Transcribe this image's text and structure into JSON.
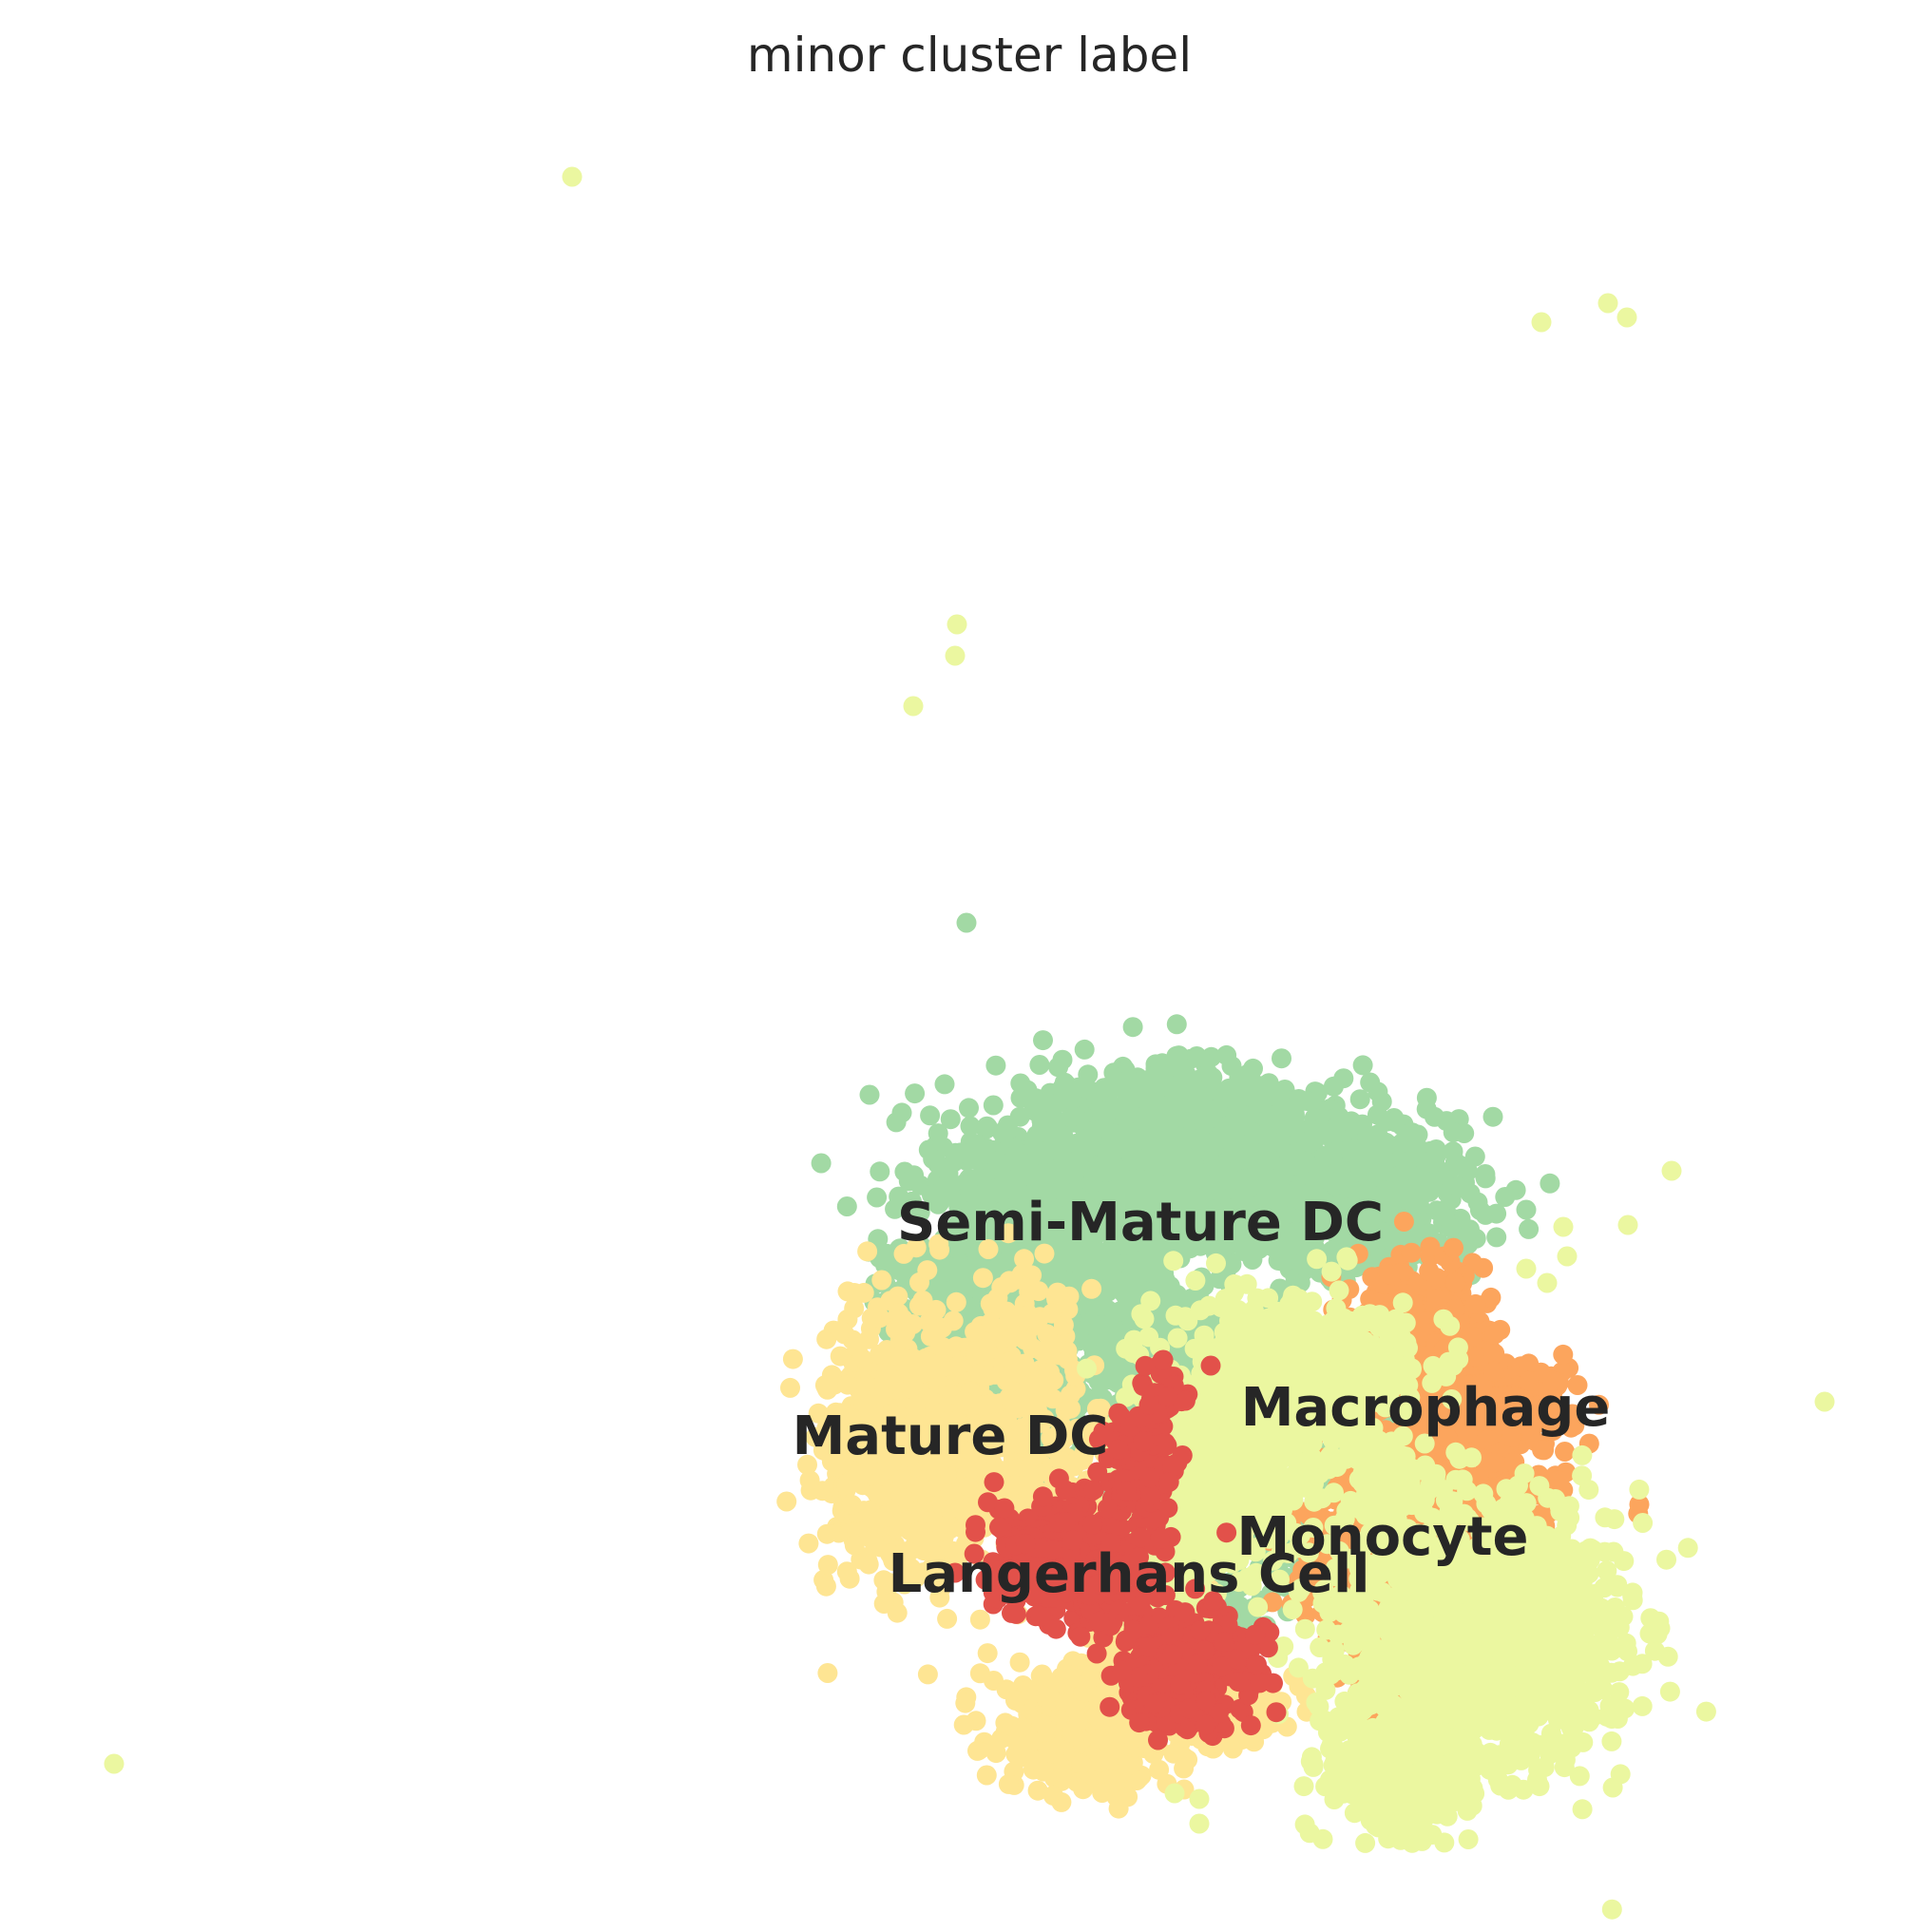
{
  "chart_data": {
    "type": "scatter",
    "title": "minor cluster label",
    "xlabel": "",
    "ylabel": "",
    "grid": false,
    "axes_visible": false,
    "legend": "on-data",
    "series": [
      {
        "name": "Semi-Mature DC",
        "color": "#a2d9a4"
      },
      {
        "name": "Mature DC",
        "color": "#fee593"
      },
      {
        "name": "Macrophage",
        "color": "#fca55d"
      },
      {
        "name": "Monocyte",
        "color": "#ebf7a0"
      },
      {
        "name": "Langerhans Cell",
        "color": "#e2514a"
      }
    ]
  }
}
